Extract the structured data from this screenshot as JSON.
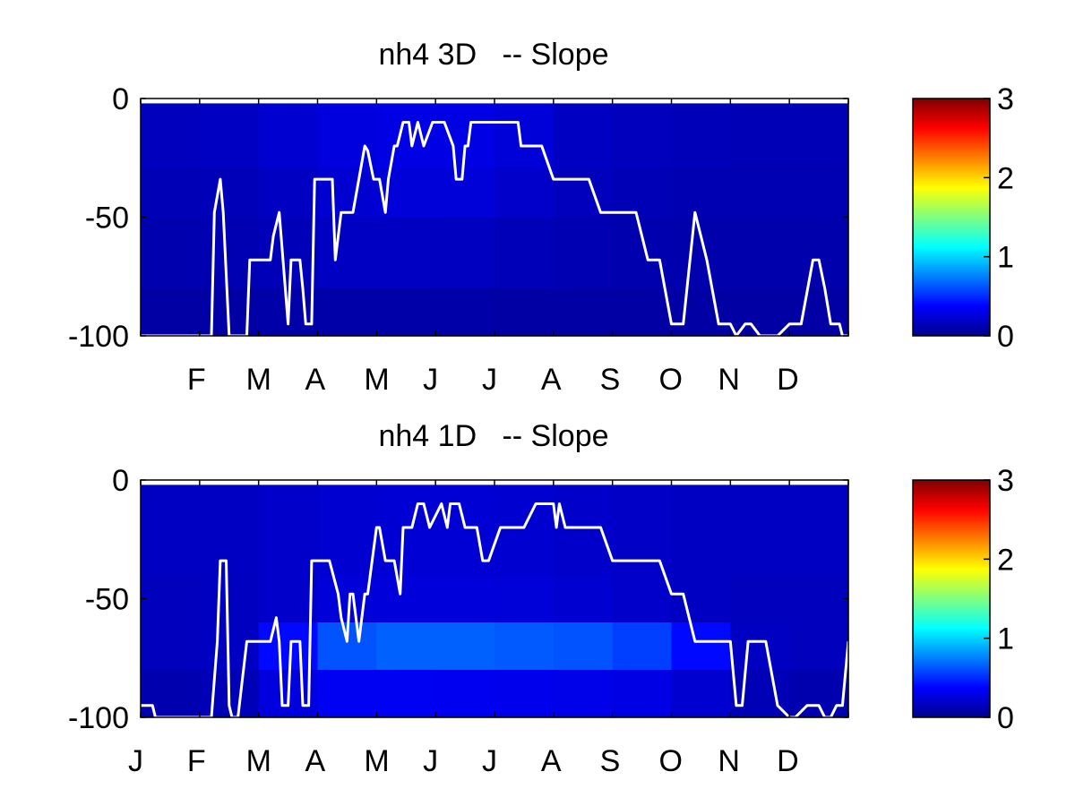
{
  "chart_data": [
    {
      "type": "heatmap",
      "title": "nh4 3D   -- Slope",
      "xlabel": "",
      "ylabel": "",
      "x_tick_labels": [
        "F",
        "M",
        "A",
        "M",
        "J",
        "J",
        "A",
        "S",
        "O",
        "N",
        "D"
      ],
      "x_tick_months": [
        2,
        3,
        4,
        5,
        6,
        7,
        8,
        9,
        10,
        11,
        12
      ],
      "xlim_months": [
        1,
        13
      ],
      "y_tick_labels": [
        "0",
        "-50",
        "-100"
      ],
      "yticks": [
        0,
        -50,
        -100
      ],
      "ylim": [
        -100,
        0
      ],
      "colorbar": {
        "ticks": [
          "0",
          "1",
          "2",
          "3"
        ],
        "range": [
          0,
          3
        ],
        "colormap": "jet"
      },
      "depth_bands": [
        [
          -2,
          -29
        ],
        [
          -29,
          -50
        ],
        [
          -50,
          -80
        ],
        [
          -80,
          -100
        ]
      ],
      "heat_values": [
        [
          0.18,
          0.2,
          0.24,
          0.28,
          0.3,
          0.3,
          0.26,
          0.2,
          0.18,
          0.17,
          0.16,
          0.16
        ],
        [
          0.16,
          0.17,
          0.2,
          0.24,
          0.26,
          0.26,
          0.22,
          0.18,
          0.16,
          0.15,
          0.15,
          0.15
        ],
        [
          0.14,
          0.15,
          0.17,
          0.2,
          0.2,
          0.19,
          0.17,
          0.15,
          0.14,
          0.13,
          0.13,
          0.13
        ],
        [
          0.11,
          0.11,
          0.12,
          0.12,
          0.12,
          0.12,
          0.11,
          0.11,
          0.11,
          0.11,
          0.11,
          0.11
        ]
      ],
      "line": {
        "color": "#ffffff",
        "x_months": [
          1.0,
          2.2,
          2.25,
          2.35,
          2.4,
          2.5,
          2.8,
          2.85,
          3.2,
          3.25,
          3.35,
          3.5,
          3.55,
          3.6,
          3.7,
          3.75,
          3.8,
          3.9,
          3.95,
          4.1,
          4.2,
          4.25,
          4.3,
          4.4,
          4.6,
          4.8,
          4.85,
          4.95,
          5.05,
          5.15,
          5.2,
          5.3,
          5.35,
          5.45,
          5.55,
          5.6,
          5.7,
          5.8,
          5.95,
          6.15,
          6.3,
          6.35,
          6.45,
          6.5,
          6.55,
          6.6,
          6.7,
          6.8,
          6.9,
          7.1,
          7.3,
          7.4,
          7.45,
          7.6,
          7.8,
          8.0,
          8.2,
          8.4,
          8.6,
          8.8,
          9.2,
          9.4,
          9.6,
          9.8,
          10.0,
          10.2,
          10.4,
          10.6,
          10.8,
          11.0,
          11.1,
          11.25,
          11.35,
          11.5,
          11.7,
          11.8,
          12.0,
          12.2,
          12.4,
          12.5,
          12.6,
          12.7,
          12.8,
          12.85,
          12.9,
          13.0
        ],
        "depths": [
          -100,
          -100,
          -48,
          -34,
          -48,
          -100,
          -100,
          -68,
          -68,
          -58,
          -48,
          -95,
          -68,
          -68,
          -68,
          -80,
          -95,
          -95,
          -34,
          -34,
          -34,
          -34,
          -68,
          -48,
          -48,
          -20,
          -22,
          -34,
          -34,
          -48,
          -34,
          -20,
          -20,
          -10,
          -10,
          -20,
          -10,
          -20,
          -10,
          -10,
          -20,
          -34,
          -34,
          -20,
          -20,
          -10,
          -10,
          -10,
          -10,
          -10,
          -10,
          -10,
          -20,
          -20,
          -20,
          -34,
          -34,
          -34,
          -34,
          -48,
          -48,
          -48,
          -68,
          -68,
          -95,
          -95,
          -48,
          -68,
          -95,
          -95,
          -100,
          -95,
          -95,
          -100,
          -100,
          -100,
          -95,
          -95,
          -68,
          -68,
          -80,
          -95,
          -95,
          -95,
          -100,
          -100
        ]
      }
    },
    {
      "type": "heatmap",
      "title": "nh4 1D   -- Slope",
      "xlabel": "",
      "ylabel": "",
      "x_tick_labels": [
        "J",
        "F",
        "M",
        "A",
        "M",
        "J",
        "J",
        "A",
        "S",
        "O",
        "N",
        "D"
      ],
      "x_tick_months": [
        1,
        2,
        3,
        4,
        5,
        6,
        7,
        8,
        9,
        10,
        11,
        12
      ],
      "xlim_months": [
        1,
        13
      ],
      "y_tick_labels": [
        "0",
        "-50",
        "-100"
      ],
      "yticks": [
        0,
        -50,
        -100
      ],
      "ylim": [
        -100,
        0
      ],
      "colorbar": {
        "ticks": [
          "0",
          "1",
          "2",
          "3"
        ],
        "range": [
          0,
          3
        ],
        "colormap": "jet"
      },
      "depth_bands": [
        [
          -2,
          -40
        ],
        [
          -40,
          -60
        ],
        [
          -60,
          -80
        ],
        [
          -80,
          -100
        ]
      ],
      "heat_values": [
        [
          0.2,
          0.2,
          0.22,
          0.24,
          0.25,
          0.25,
          0.24,
          0.22,
          0.21,
          0.2,
          0.2,
          0.2
        ],
        [
          0.18,
          0.19,
          0.22,
          0.26,
          0.27,
          0.27,
          0.26,
          0.24,
          0.22,
          0.2,
          0.18,
          0.18
        ],
        [
          0.18,
          0.2,
          0.4,
          0.62,
          0.66,
          0.66,
          0.64,
          0.62,
          0.56,
          0.4,
          0.2,
          0.18
        ],
        [
          0.14,
          0.16,
          0.28,
          0.34,
          0.34,
          0.33,
          0.32,
          0.31,
          0.3,
          0.24,
          0.16,
          0.14
        ]
      ],
      "line": {
        "color": "#ffffff",
        "x_months": [
          1.0,
          1.2,
          1.25,
          2.2,
          2.3,
          2.35,
          2.45,
          2.5,
          2.55,
          2.65,
          2.8,
          2.85,
          3.2,
          3.3,
          3.35,
          3.4,
          3.5,
          3.55,
          3.7,
          3.75,
          3.8,
          3.85,
          3.9,
          4.1,
          4.2,
          4.35,
          4.4,
          4.5,
          4.55,
          4.6,
          4.7,
          4.8,
          4.85,
          5.0,
          5.05,
          5.15,
          5.2,
          5.3,
          5.4,
          5.45,
          5.55,
          5.6,
          5.7,
          5.8,
          5.9,
          6.1,
          6.2,
          6.25,
          6.35,
          6.4,
          6.5,
          6.7,
          6.8,
          6.9,
          7.1,
          7.3,
          7.5,
          7.7,
          7.9,
          8.0,
          8.05,
          8.1,
          8.2,
          8.4,
          8.6,
          8.8,
          9.0,
          9.3,
          9.6,
          9.8,
          10.0,
          10.2,
          10.4,
          10.6,
          10.8,
          11.0,
          11.1,
          11.2,
          11.3,
          11.4,
          11.6,
          11.8,
          12.0,
          12.1,
          12.3,
          12.5,
          12.6,
          12.7,
          12.8,
          12.9,
          13.0
        ],
        "depths": [
          -95,
          -95,
          -100,
          -100,
          -68,
          -34,
          -34,
          -95,
          -100,
          -100,
          -68,
          -68,
          -68,
          -58,
          -68,
          -95,
          -95,
          -68,
          -68,
          -95,
          -95,
          -95,
          -34,
          -34,
          -34,
          -48,
          -58,
          -68,
          -48,
          -48,
          -68,
          -48,
          -48,
          -20,
          -20,
          -34,
          -34,
          -34,
          -48,
          -20,
          -20,
          -20,
          -10,
          -10,
          -20,
          -10,
          -20,
          -10,
          -10,
          -10,
          -20,
          -20,
          -34,
          -34,
          -20,
          -20,
          -20,
          -10,
          -10,
          -10,
          -20,
          -10,
          -20,
          -20,
          -20,
          -20,
          -34,
          -34,
          -34,
          -34,
          -48,
          -48,
          -68,
          -68,
          -68,
          -68,
          -95,
          -95,
          -68,
          -68,
          -68,
          -95,
          -100,
          -100,
          -95,
          -95,
          -100,
          -100,
          -95,
          -95,
          -68
        ]
      }
    }
  ]
}
